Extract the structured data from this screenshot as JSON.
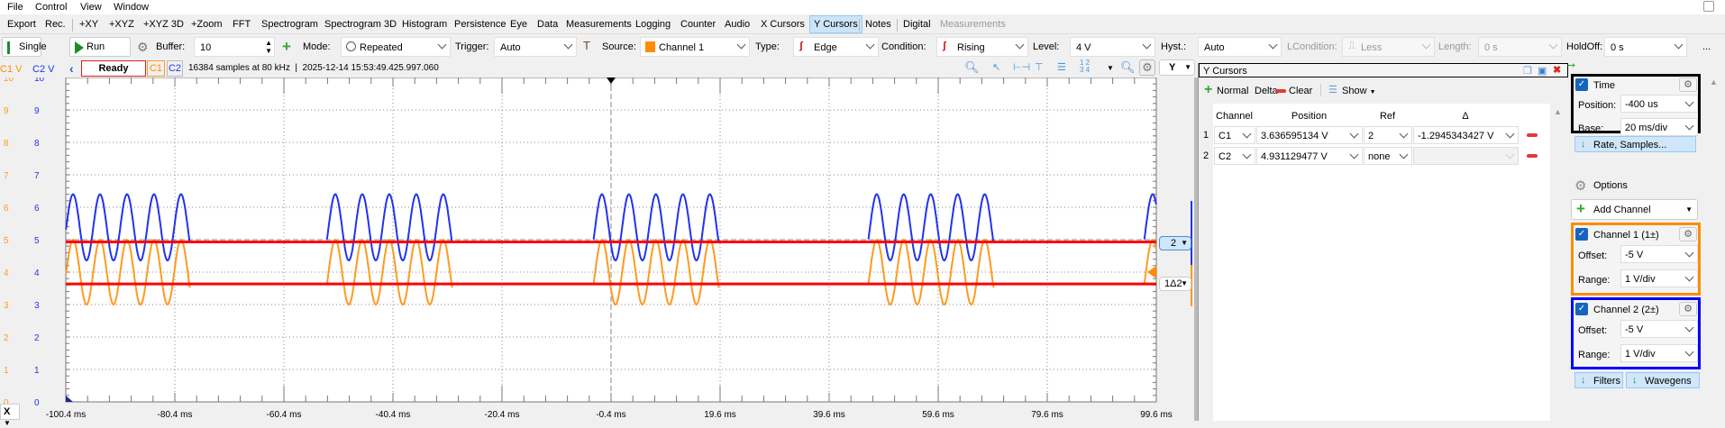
{
  "menu": [
    "File",
    "Control",
    "View",
    "Window"
  ],
  "tabs": [
    "Export",
    "Rec.",
    "+XY",
    "+XYZ",
    "+XYZ 3D",
    "+Zoom",
    "FFT",
    "Spectrogram",
    "Spectrogram 3D",
    "Histogram",
    "Persistence",
    "Eye",
    "Data",
    "Measurements",
    "Logging",
    "Counter",
    "Audio",
    "X Cursors",
    "Y Cursors",
    "Notes",
    "Digital",
    "Measurements"
  ],
  "toolbar": {
    "single": "Single",
    "run": "Run",
    "buffer_label": "Buffer:",
    "buffer": "10",
    "mode_label": "Mode:",
    "mode": "Repeated",
    "trigger_label": "Trigger:",
    "trigger": "Auto",
    "source_label": "Source:",
    "source": "Channel 1",
    "type_label": "Type:",
    "type": "Edge",
    "condition_label": "Condition:",
    "condition": "Rising",
    "level_label": "Level:",
    "level": "4 V",
    "hyst_label": "Hyst.:",
    "hyst": "Auto",
    "lcondition_label": "LCondition:",
    "lcondition": "Less",
    "length_label": "Length:",
    "length": "0 s",
    "holdoff_label": "HoldOff:",
    "holdoff": "0 s",
    "more": "..."
  },
  "status": {
    "c1_unit": "C1 V",
    "c2_unit": "C2 V",
    "state": "Ready",
    "c1": "C1",
    "c2": "C2",
    "info": "16384 samples at 80 kHz  |  2025-12-14 15:53:49.425.997.060",
    "y_select": "Y"
  },
  "plot": {
    "y_ticks": [
      "0",
      "1",
      "2",
      "3",
      "4",
      "5",
      "6",
      "7",
      "8",
      "9",
      "10"
    ],
    "x_ticks": [
      "-100.4 ms",
      "-80.4 ms",
      "-60.4 ms",
      "-40.4 ms",
      "-20.4 ms",
      "-0.4 ms",
      "19.6 ms",
      "39.6 ms",
      "59.6 ms",
      "79.6 ms",
      "99.6 ms"
    ],
    "x_select": "X",
    "cursor_tag_2": "2",
    "cursor_tag_1": "1Δ2",
    "trigger_level_v": 4,
    "colors": {
      "c1": "#ff9a1f",
      "c2": "#2233ee",
      "cursor": "#ff0000"
    }
  },
  "ycursors": {
    "title": "Y Cursors",
    "normal": "Normal",
    "delta": "Delta",
    "clear": "Clear",
    "show": "Show",
    "columns": [
      "Channel",
      "Position",
      "Ref",
      "Δ"
    ],
    "rows": [
      {
        "n": "1",
        "channel": "C1",
        "position": "3.636595134 V",
        "ref": "2",
        "delta": "-1.2945343427 V",
        "pos_v": 3.636595134
      },
      {
        "n": "2",
        "channel": "C2",
        "position": "4.931129477 V",
        "ref": "none",
        "delta": "",
        "pos_v": 4.931129477
      }
    ]
  },
  "side": {
    "time": {
      "title": "Time",
      "position_label": "Position:",
      "position": "-400 us",
      "base_label": "Base:",
      "base": "20 ms/div",
      "rate": "Rate, Samples..."
    },
    "options": "Options",
    "add_channel": "Add Channel",
    "ch1": {
      "title": "Channel 1 (1±)",
      "offset_label": "Offset:",
      "offset": "-5 V",
      "range_label": "Range:",
      "range": "1 V/div",
      "color": "#ff8c00"
    },
    "ch2": {
      "title": "Channel 2 (2±)",
      "offset_label": "Offset:",
      "offset": "-5 V",
      "range_label": "Range:",
      "range": "1 V/div",
      "color": "#0000ff"
    },
    "filters": "Filters",
    "wavegens": "Wavegens"
  }
}
